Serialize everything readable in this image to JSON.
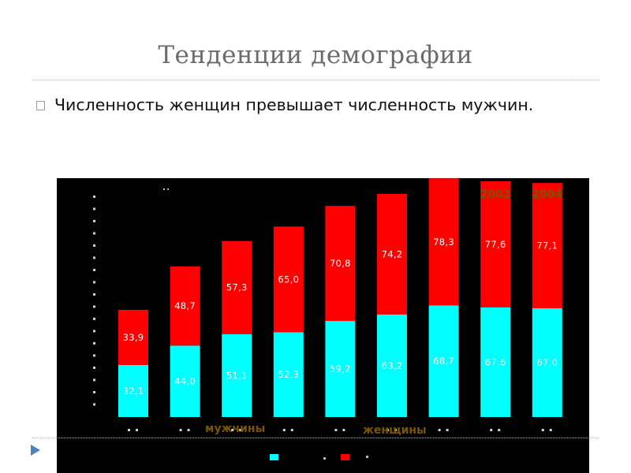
{
  "slide": {
    "title": "Тенденции демографии",
    "bullet": "Численность женщин превышает численность мужчин."
  },
  "colors": {
    "men": "#00ffff",
    "women": "#ff0000",
    "chart_background": "#000000",
    "label_text": "#ffffff",
    "year_label": "#7a5500",
    "legend_text": "#7a5500",
    "title_text": "#6b6b6b"
  },
  "icons": {
    "bullet": "square-bullet-icon",
    "nav": "triangle-arrow-icon"
  },
  "chart_data": {
    "type": "bar",
    "stacked": true,
    "title": "",
    "xlabel": "",
    "ylabel": "",
    "ylim": [
      0,
      150
    ],
    "grid": false,
    "legend_position": "bottom",
    "year_labels": [
      {
        "index": 7,
        "text": "2002"
      },
      {
        "index": 8,
        "text": "2004"
      }
    ],
    "series": [
      {
        "name": "мужчины",
        "color": "#00ffff",
        "values": [
          32.1,
          44.0,
          51.1,
          52.3,
          59.2,
          63.2,
          68.7,
          67.6,
          67.0
        ],
        "labels": [
          "32,1",
          "44,0",
          "51,1",
          "52,3",
          "59,2",
          "63,2",
          "68,7",
          "67,6",
          "67,0"
        ]
      },
      {
        "name": "женщины",
        "color": "#ff0000",
        "values": [
          33.9,
          48.7,
          57.3,
          65.0,
          70.8,
          74.2,
          78.3,
          77.6,
          77.1
        ],
        "labels": [
          "33,9",
          "48,7",
          "57,3",
          "65,0",
          "70,8",
          "74,2",
          "78,3",
          "77,6",
          "77,1"
        ]
      }
    ]
  }
}
